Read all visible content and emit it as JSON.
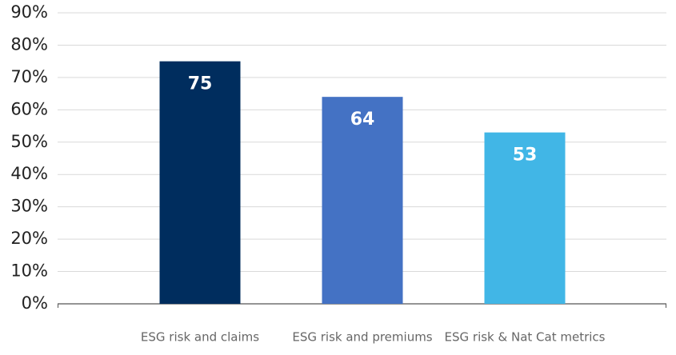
{
  "chart_data": {
    "type": "bar",
    "categories": [
      "ESG risk and claims",
      "ESG risk and premiums",
      "ESG risk & Nat Cat metrics"
    ],
    "values": [
      75,
      64,
      53
    ],
    "colors": [
      "#002d5e",
      "#4472c4",
      "#41b6e6"
    ],
    "ylim": [
      0,
      90
    ],
    "yticks": [
      {
        "value": 0,
        "label": "0%"
      },
      {
        "value": 10,
        "label": "10%"
      },
      {
        "value": 20,
        "label": "20%"
      },
      {
        "value": 30,
        "label": "30%"
      },
      {
        "value": 40,
        "label": "40%"
      },
      {
        "value": 50,
        "label": "50%"
      },
      {
        "value": 60,
        "label": "60%"
      },
      {
        "value": 70,
        "label": "70%"
      },
      {
        "value": 80,
        "label": "80%"
      },
      {
        "value": 90,
        "label": "90%"
      }
    ],
    "grid": true
  }
}
